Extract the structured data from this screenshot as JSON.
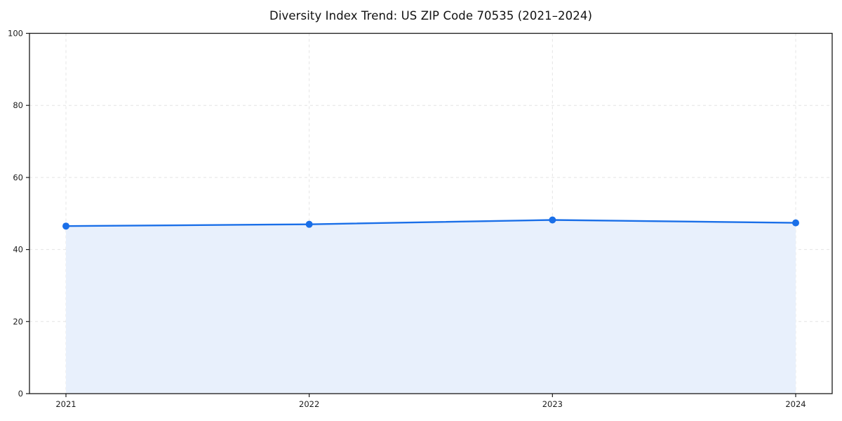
{
  "chart": {
    "title": "Diversity Index Trend: US ZIP Code 70535 (2021–2024)"
  },
  "chart_data": {
    "type": "area",
    "title": "Diversity Index Trend: US ZIP Code 70535 (2021–2024)",
    "x": [
      2021,
      2022,
      2023,
      2024
    ],
    "x_tick_labels": [
      "2021",
      "2022",
      "2023",
      "2024"
    ],
    "series": [
      {
        "name": "Diversity Index",
        "values": [
          46.5,
          47.0,
          48.2,
          47.4
        ]
      }
    ],
    "xlabel": "",
    "ylabel": "",
    "ylim": [
      0,
      100
    ],
    "yticks": [
      0,
      20,
      40,
      60,
      80,
      100
    ],
    "grid": true,
    "grid_style": "dashed",
    "legend": "none",
    "x_margin_fraction": 0.05,
    "colors": {
      "line": "#1a6fe8",
      "marker": "#1a6fe8",
      "fill": "#e8f0fc",
      "grid": "#e4e4e4",
      "axis": "#1a1a1a",
      "tick_text": "#1c1c1c",
      "background": "#ffffff"
    }
  }
}
